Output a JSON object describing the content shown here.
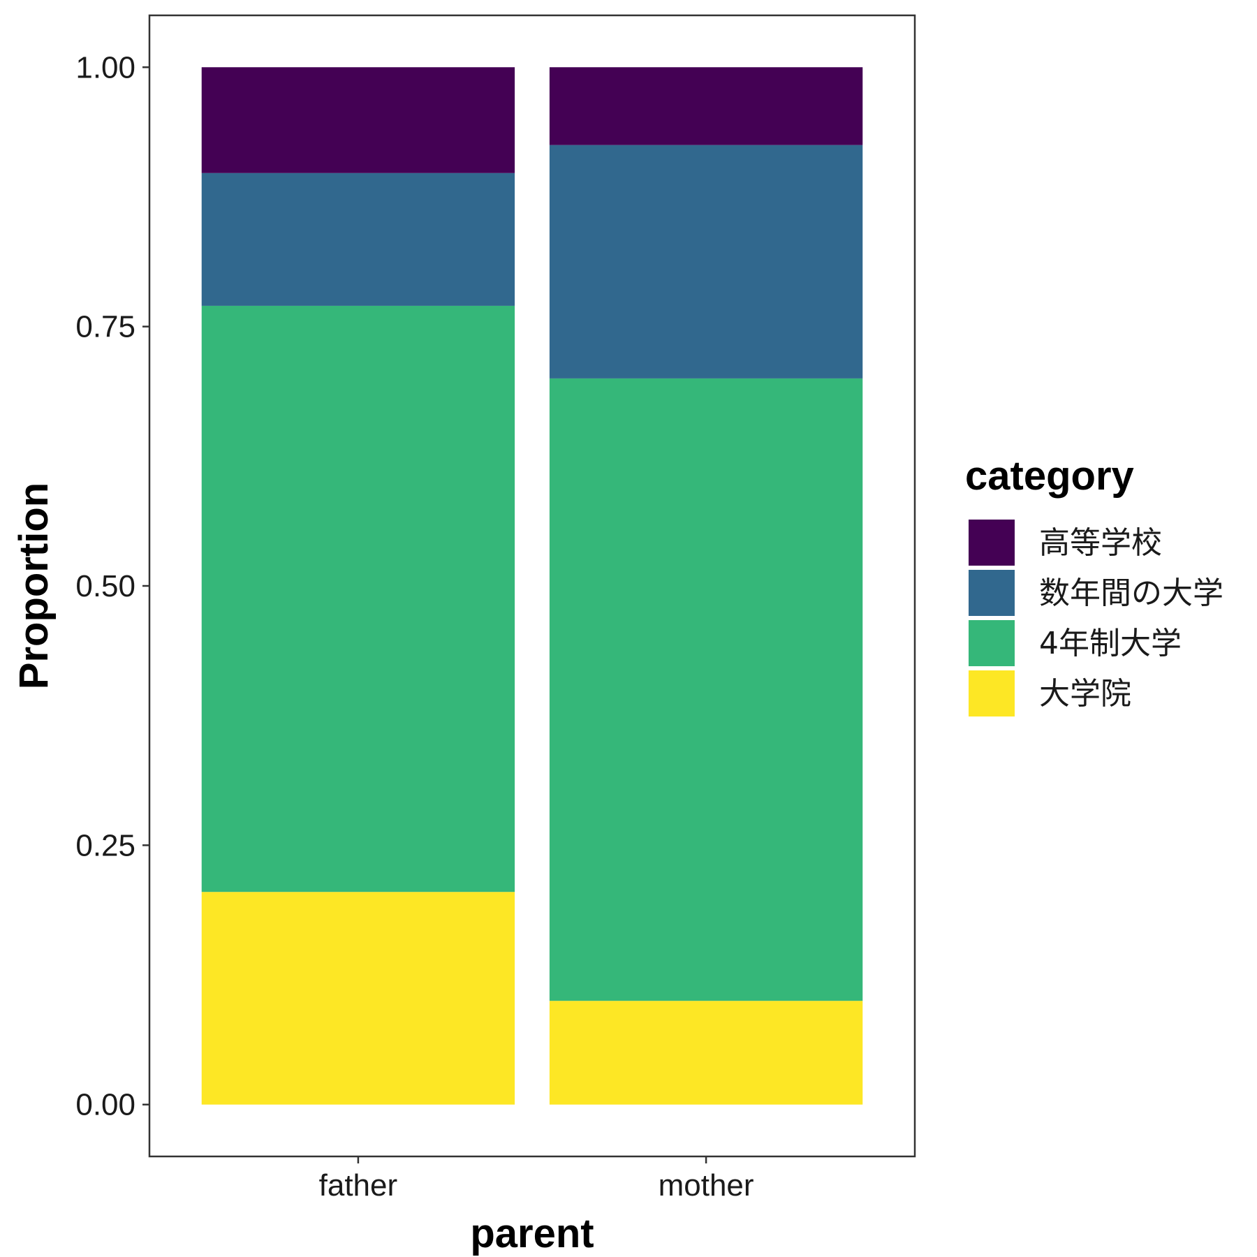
{
  "chart_data": {
    "type": "bar",
    "stacked": true,
    "orientation": "vertical",
    "categories": [
      "father",
      "mother"
    ],
    "series": [
      {
        "name": "大学院",
        "color": "#FDE725",
        "values": [
          0.205,
          0.1
        ]
      },
      {
        "name": "4年制大学",
        "color": "#35B779",
        "values": [
          0.565,
          0.6
        ]
      },
      {
        "name": "数年間の大学",
        "color": "#31688E",
        "values": [
          0.128,
          0.225
        ]
      },
      {
        "name": "高等学校",
        "color": "#440154",
        "values": [
          0.102,
          0.075
        ]
      }
    ],
    "xlabel": "parent",
    "ylabel": "Proportion",
    "ylim": [
      -0.05,
      1.05
    ],
    "yticks": [
      0,
      0.25,
      0.5,
      0.75,
      1.0
    ],
    "ytick_labels": [
      "0.00",
      "0.25",
      "0.50",
      "0.75",
      "1.00"
    ],
    "legend": {
      "title": "category",
      "position": "right",
      "items": [
        "高等学校",
        "数年間の大学",
        "4年制大学",
        "大学院"
      ]
    },
    "grid": false
  }
}
